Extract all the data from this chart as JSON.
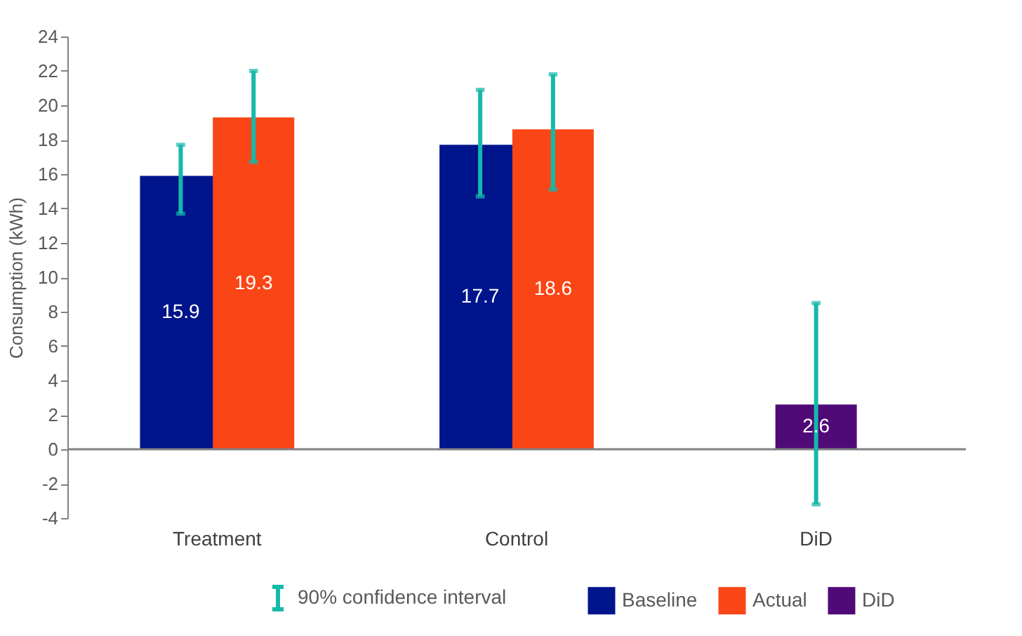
{
  "chart_data": {
    "type": "bar",
    "ylabel": "Consumption (kWh)",
    "categories": [
      "Treatment",
      "Control",
      "DiD"
    ],
    "series": [
      {
        "name": "Baseline",
        "color": "#00148c",
        "values": [
          15.9,
          17.7,
          null
        ],
        "errors": [
          [
            13.7,
            17.7
          ],
          [
            14.7,
            20.9
          ],
          null
        ]
      },
      {
        "name": "Actual",
        "color": "#fa4616",
        "values": [
          19.3,
          18.6,
          null
        ],
        "errors": [
          [
            16.7,
            22.0
          ],
          [
            15.1,
            21.8
          ],
          null
        ]
      },
      {
        "name": "DiD",
        "color": "#500a78",
        "values": [
          null,
          null,
          2.6
        ],
        "errors": [
          null,
          null,
          [
            -3.2,
            8.5
          ]
        ]
      }
    ],
    "ylim": [
      -4,
      24
    ],
    "yticks": [
      -4,
      -2,
      0,
      2,
      4,
      6,
      8,
      10,
      12,
      14,
      16,
      18,
      20,
      22,
      24
    ],
    "ref_lines": [
      {
        "axis": "y",
        "value": 0,
        "color": "#808080"
      }
    ],
    "data_labels": true,
    "grid": false,
    "legend": "bottom",
    "annotations": [
      "90% confidence interval"
    ]
  }
}
